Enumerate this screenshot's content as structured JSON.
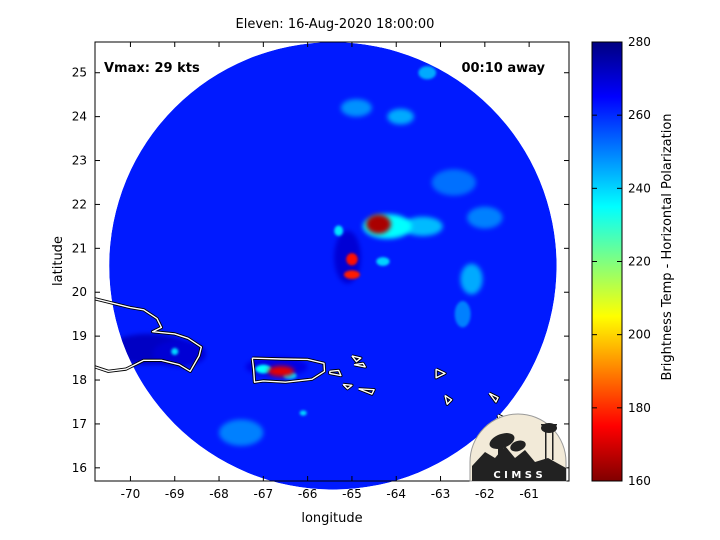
{
  "chart_data": {
    "type": "heatmap",
    "title": "Eleven: 16-Aug-2020 18:00:00",
    "xlabel": "longitude",
    "ylabel": "latitude",
    "xlim": [
      -70.8,
      -60.1
    ],
    "ylim": [
      15.7,
      25.7
    ],
    "xticks": [
      -70,
      -69,
      -68,
      -67,
      -66,
      -65,
      -64,
      -63,
      -62,
      -61
    ],
    "yticks": [
      16,
      17,
      18,
      19,
      20,
      21,
      22,
      23,
      24,
      25
    ],
    "annotations": {
      "vmax": "Vmax: 29 kts",
      "away": "00:10 away"
    },
    "swath": {
      "center_lon": -65.43,
      "center_lat": 20.6,
      "radius_deg": 5.05
    },
    "colorbar": {
      "label": "Brightness Temp - Horizontal Polarization",
      "min": 160,
      "max": 280,
      "ticks": [
        160,
        180,
        200,
        220,
        240,
        260,
        280
      ],
      "colors": [
        "#800000",
        "#ff0000",
        "#ff8000",
        "#ffff00",
        "#80ff80",
        "#00ffff",
        "#0080ff",
        "#0000ff",
        "#000080"
      ]
    },
    "background_temp": 262,
    "features": [
      {
        "lon": -64.4,
        "lat": 21.55,
        "rx": 0.28,
        "ry": 0.22,
        "t": 165
      },
      {
        "lon": -64.2,
        "lat": 21.5,
        "rx": 0.55,
        "ry": 0.28,
        "t": 235
      },
      {
        "lon": -63.4,
        "lat": 21.5,
        "rx": 0.45,
        "ry": 0.22,
        "t": 243
      },
      {
        "lon": -65.0,
        "lat": 20.75,
        "rx": 0.13,
        "ry": 0.14,
        "t": 176
      },
      {
        "lon": -65.0,
        "lat": 20.4,
        "rx": 0.18,
        "ry": 0.1,
        "t": 178
      },
      {
        "lon": -65.3,
        "lat": 21.4,
        "rx": 0.1,
        "ry": 0.12,
        "t": 238
      },
      {
        "lon": -64.3,
        "lat": 20.7,
        "rx": 0.15,
        "ry": 0.1,
        "t": 240
      },
      {
        "lon": -62.3,
        "lat": 20.3,
        "rx": 0.25,
        "ry": 0.35,
        "t": 245
      },
      {
        "lon": -62.5,
        "lat": 19.5,
        "rx": 0.18,
        "ry": 0.3,
        "t": 250
      },
      {
        "lon": -64.9,
        "lat": 24.2,
        "rx": 0.35,
        "ry": 0.2,
        "t": 248
      },
      {
        "lon": -63.9,
        "lat": 24.0,
        "rx": 0.3,
        "ry": 0.18,
        "t": 245
      },
      {
        "lon": -62.7,
        "lat": 22.5,
        "rx": 0.5,
        "ry": 0.3,
        "t": 252
      },
      {
        "lon": -62.0,
        "lat": 21.7,
        "rx": 0.4,
        "ry": 0.25,
        "t": 250
      },
      {
        "lon": -63.3,
        "lat": 25.0,
        "rx": 0.2,
        "ry": 0.15,
        "t": 245
      },
      {
        "lon": -66.6,
        "lat": 18.2,
        "rx": 0.3,
        "ry": 0.12,
        "t": 172
      },
      {
        "lon": -67.0,
        "lat": 18.25,
        "rx": 0.18,
        "ry": 0.1,
        "t": 235
      },
      {
        "lon": -66.4,
        "lat": 18.1,
        "rx": 0.15,
        "ry": 0.08,
        "t": 240
      },
      {
        "lon": -66.7,
        "lat": 18.3,
        "rx": 0.7,
        "ry": 0.22,
        "t": 268
      },
      {
        "lon": -69.6,
        "lat": 18.7,
        "rx": 0.9,
        "ry": 0.35,
        "t": 272
      },
      {
        "lon": -68.9,
        "lat": 18.6,
        "rx": 0.6,
        "ry": 0.3,
        "t": 270
      },
      {
        "lon": -69.0,
        "lat": 18.65,
        "rx": 0.08,
        "ry": 0.08,
        "t": 240
      },
      {
        "lon": -66.1,
        "lat": 17.25,
        "rx": 0.08,
        "ry": 0.06,
        "t": 240
      },
      {
        "lon": -65.1,
        "lat": 20.8,
        "rx": 0.3,
        "ry": 0.6,
        "t": 270
      },
      {
        "lon": -67.5,
        "lat": 16.8,
        "rx": 0.5,
        "ry": 0.3,
        "t": 250
      }
    ],
    "coastlines": [
      [
        [
          -70.8,
          19.85
        ],
        [
          -70.4,
          19.75
        ],
        [
          -70.0,
          19.65
        ],
        [
          -69.7,
          19.6
        ],
        [
          -69.4,
          19.4
        ],
        [
          -69.3,
          19.2
        ],
        [
          -69.5,
          19.1
        ],
        [
          -69.0,
          19.05
        ],
        [
          -68.7,
          18.95
        ],
        [
          -68.4,
          18.75
        ],
        [
          -68.45,
          18.55
        ],
        [
          -68.65,
          18.2
        ],
        [
          -68.9,
          18.35
        ],
        [
          -69.3,
          18.45
        ],
        [
          -69.7,
          18.45
        ],
        [
          -70.1,
          18.25
        ],
        [
          -70.5,
          18.2
        ],
        [
          -70.8,
          18.3
        ]
      ],
      [
        [
          -67.25,
          18.5
        ],
        [
          -66.6,
          18.48
        ],
        [
          -66.0,
          18.47
        ],
        [
          -65.63,
          18.38
        ],
        [
          -65.62,
          18.2
        ],
        [
          -65.9,
          18.02
        ],
        [
          -66.5,
          17.95
        ],
        [
          -67.0,
          17.98
        ],
        [
          -67.2,
          17.95
        ],
        [
          -67.22,
          18.25
        ],
        [
          -67.25,
          18.5
        ]
      ],
      [
        [
          -65.5,
          18.2
        ],
        [
          -65.3,
          18.22
        ],
        [
          -65.25,
          18.1
        ],
        [
          -65.5,
          18.15
        ],
        [
          -65.5,
          18.2
        ]
      ],
      [
        [
          -65.2,
          17.9
        ],
        [
          -65.0,
          17.88
        ],
        [
          -65.1,
          17.8
        ],
        [
          -65.2,
          17.9
        ]
      ],
      [
        [
          -64.95,
          18.35
        ],
        [
          -64.75,
          18.38
        ],
        [
          -64.7,
          18.3
        ],
        [
          -64.95,
          18.35
        ]
      ],
      [
        [
          -65.0,
          18.55
        ],
        [
          -64.8,
          18.5
        ],
        [
          -64.9,
          18.42
        ],
        [
          -65.0,
          18.55
        ]
      ],
      [
        [
          -64.85,
          17.8
        ],
        [
          -64.5,
          17.78
        ],
        [
          -64.55,
          17.68
        ],
        [
          -64.85,
          17.8
        ]
      ],
      [
        [
          -63.1,
          18.25
        ],
        [
          -62.9,
          18.15
        ],
        [
          -63.1,
          18.05
        ],
        [
          -63.1,
          18.25
        ]
      ],
      [
        [
          -62.9,
          17.65
        ],
        [
          -62.75,
          17.55
        ],
        [
          -62.85,
          17.45
        ],
        [
          -62.9,
          17.65
        ]
      ],
      [
        [
          -61.9,
          17.7
        ],
        [
          -61.7,
          17.6
        ],
        [
          -61.75,
          17.5
        ],
        [
          -61.9,
          17.7
        ]
      ],
      [
        [
          -61.7,
          17.2
        ],
        [
          -61.5,
          17.1
        ],
        [
          -61.65,
          17.0
        ],
        [
          -61.7,
          17.2
        ]
      ],
      [
        [
          -61.95,
          16.8
        ],
        [
          -61.65,
          16.75
        ],
        [
          -61.45,
          16.65
        ],
        [
          -61.55,
          16.95
        ],
        [
          -61.95,
          16.8
        ]
      ],
      [
        [
          -61.9,
          16.4
        ],
        [
          -61.75,
          16.25
        ],
        [
          -61.8,
          16.15
        ],
        [
          -61.9,
          16.4
        ]
      ]
    ],
    "logo_text": "C I M S S"
  }
}
